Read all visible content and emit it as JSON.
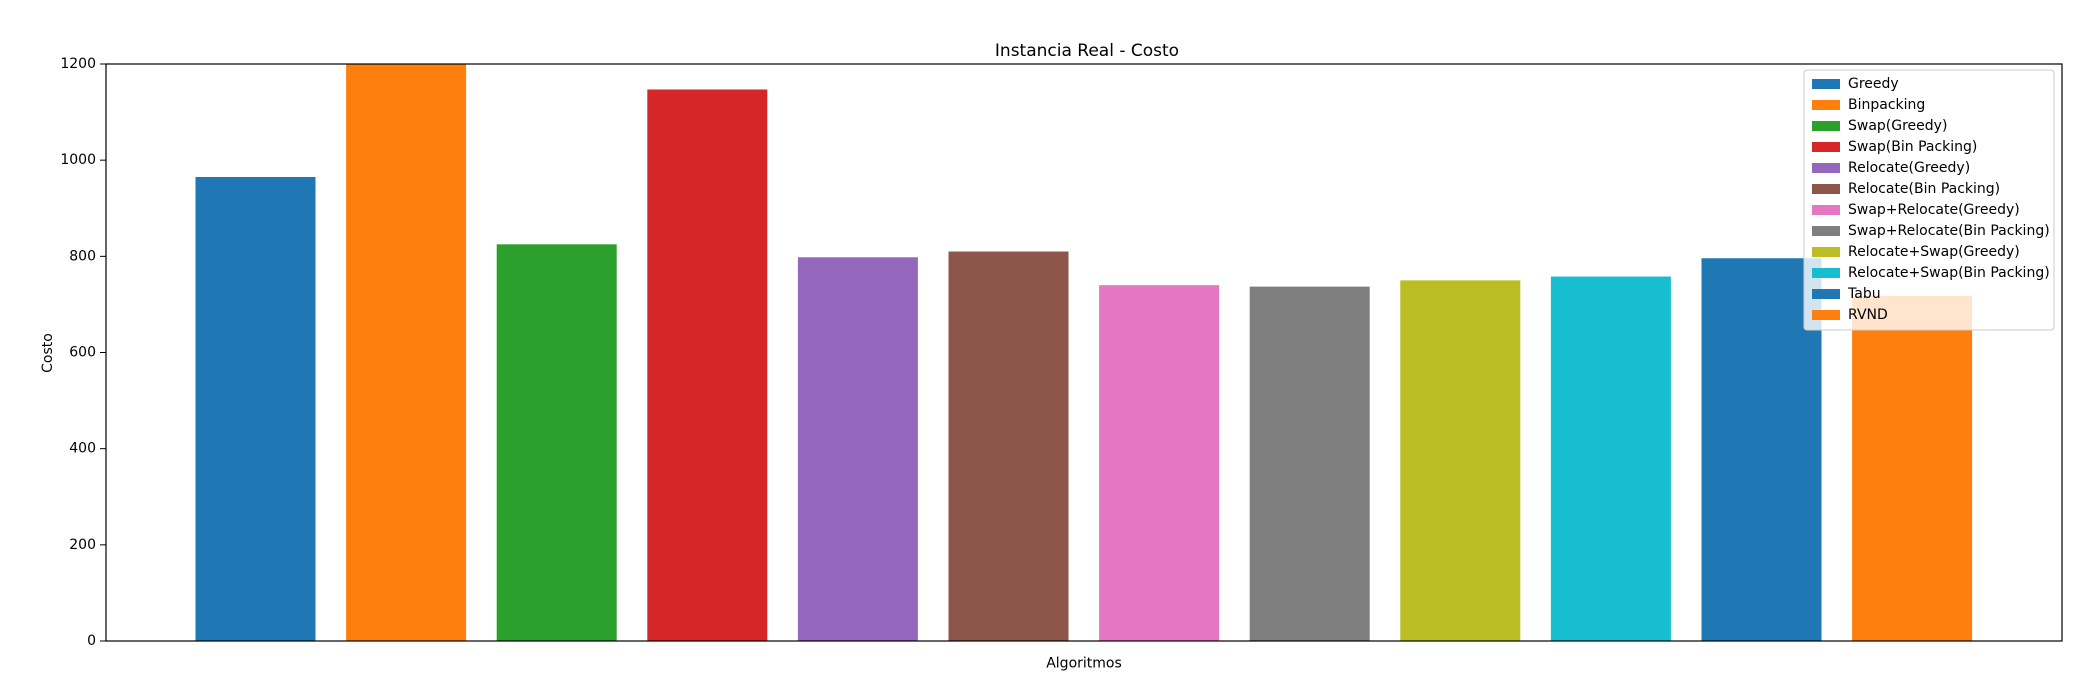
{
  "chart_data": {
    "type": "bar",
    "title": "Instancia Real - Costo",
    "xlabel": "Algoritmos",
    "ylabel": "Costo",
    "ylim": [
      0,
      1200
    ],
    "yticks": [
      0,
      200,
      400,
      600,
      800,
      1000,
      1200
    ],
    "grid": false,
    "legend_position": "top-right",
    "series": [
      {
        "name": "Greedy",
        "value": 965,
        "color": "#1f77b4"
      },
      {
        "name": "Binpacking",
        "value": 1200,
        "color": "#ff7f0e"
      },
      {
        "name": "Swap(Greedy)",
        "value": 825,
        "color": "#2ca02c"
      },
      {
        "name": "Swap(Bin Packing)",
        "value": 1147,
        "color": "#d62728"
      },
      {
        "name": "Relocate(Greedy)",
        "value": 798,
        "color": "#9467bd"
      },
      {
        "name": "Relocate(Bin Packing)",
        "value": 810,
        "color": "#8c564b"
      },
      {
        "name": "Swap+Relocate(Greedy)",
        "value": 740,
        "color": "#e377c2"
      },
      {
        "name": "Swap+Relocate(Bin Packing)",
        "value": 737,
        "color": "#7f7f7f"
      },
      {
        "name": "Relocate+Swap(Greedy)",
        "value": 750,
        "color": "#bcbd22"
      },
      {
        "name": "Relocate+Swap(Bin Packing)",
        "value": 758,
        "color": "#17becf"
      },
      {
        "name": "Tabu",
        "value": 796,
        "color": "#1f77b4"
      },
      {
        "name": "RVND",
        "value": 718,
        "color": "#ff7f0e"
      }
    ]
  }
}
